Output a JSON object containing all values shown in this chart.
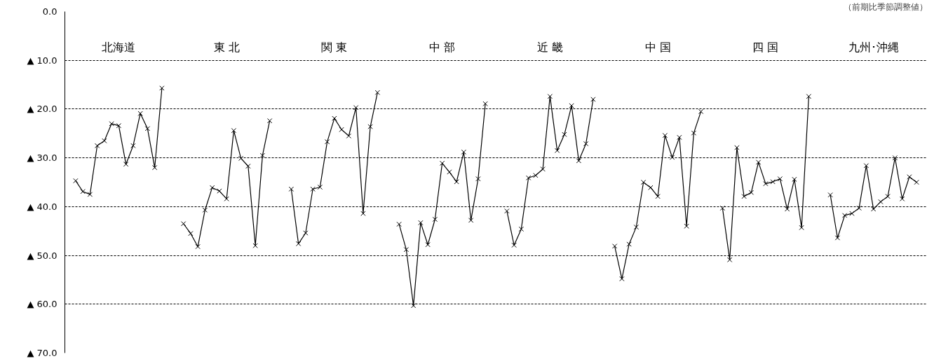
{
  "chart_data": {
    "type": "line",
    "subtitle": "（前期比季節調整値）",
    "annotations": [
      "北海道",
      "東 北",
      "関 東",
      "中 部",
      "近 畿",
      "中 国",
      "四 国",
      "九州･沖縄"
    ],
    "categories": [
      null,
      null,
      null,
      null,
      null,
      null,
      null,
      null,
      null,
      null,
      null,
      null,
      null,
      null,
      null,
      null,
      null,
      null,
      null,
      null,
      null,
      null,
      null,
      null,
      null,
      null,
      null,
      null,
      null,
      null,
      null,
      null,
      null,
      null,
      null,
      null,
      null,
      null,
      null,
      null,
      null,
      null,
      null,
      null,
      null,
      null,
      null,
      null,
      null,
      null,
      null,
      null,
      null,
      null,
      null,
      null,
      null,
      null,
      null,
      null,
      null,
      null,
      null,
      null,
      null,
      null,
      null,
      null,
      null,
      null,
      null,
      null,
      null,
      null,
      null,
      null,
      null,
      null,
      null,
      null,
      null,
      null,
      null,
      null,
      null,
      null,
      null,
      null,
      null,
      null,
      null,
      null,
      null,
      null,
      null,
      null,
      null,
      null,
      null,
      null,
      null,
      null,
      null,
      null,
      null,
      null,
      null,
      null,
      null,
      null,
      null,
      null,
      null,
      null,
      null,
      null,
      null,
      null,
      null,
      null
    ],
    "ylim": [
      -70,
      0
    ],
    "yticks": [
      {
        "value": 0,
        "label": "0.0"
      },
      {
        "value": -10,
        "label": "▲ 10.0"
      },
      {
        "value": -20,
        "label": "▲ 20.0"
      },
      {
        "value": -30,
        "label": "▲ 30.0"
      },
      {
        "value": -40,
        "label": "▲ 40.0"
      },
      {
        "value": -50,
        "label": "▲ 50.0"
      },
      {
        "value": -60,
        "label": "▲ 60.0"
      },
      {
        "value": -70,
        "label": "▲ 70.0"
      }
    ],
    "grid": "y",
    "tick_labels": "y",
    "marker": "cross",
    "line_style": "solid",
    "series": [
      {
        "color": "#000000",
        "values": [
          null,
          -34.7,
          -36.9,
          -37.5,
          -27.5,
          -26.5,
          -23.0,
          -23.4,
          -31.3,
          -27.5,
          -20.9,
          -24.0,
          -32.0,
          -15.7,
          null,
          null,
          -43.5,
          -45.5,
          -48.2,
          -40.7,
          -36.1,
          -36.8,
          -38.4,
          -24.4,
          -30.1,
          -31.7,
          -48.0,
          -29.5,
          -22.4,
          null,
          null,
          -36.4,
          -47.6,
          -45.4,
          -36.4,
          -36.0,
          -26.7,
          -21.9,
          -24.2,
          -25.5,
          -19.7,
          -41.4,
          -23.6,
          -16.6,
          null,
          null,
          -43.6,
          -48.8,
          -60.3,
          -43.3,
          -47.8,
          -42.6,
          -31.1,
          -32.9,
          -34.9,
          -28.8,
          -42.8,
          -34.3,
          -18.9,
          null,
          null,
          -40.9,
          -47.9,
          -44.6,
          -34.1,
          -33.6,
          -32.3,
          -17.4,
          -28.5,
          -25.2,
          -19.3,
          -30.6,
          -27.1,
          -18.0,
          null,
          null,
          -48.1,
          -54.8,
          -47.7,
          -44.2,
          -35.0,
          -36.1,
          -37.9,
          -25.4,
          -29.9,
          -25.8,
          -44.0,
          -24.9,
          -20.5,
          null,
          null,
          -40.3,
          -50.9,
          -27.9,
          -37.9,
          -37.1,
          -30.9,
          -35.3,
          -34.9,
          -34.3,
          -40.5,
          -34.4,
          -44.3,
          -17.4,
          null,
          null,
          -37.6,
          -46.4,
          -41.8,
          -41.4,
          -40.3,
          -31.6,
          -40.5,
          -39.0,
          -37.9,
          -30.0,
          -38.4,
          -33.9,
          -35.0,
          null
        ]
      }
    ]
  }
}
